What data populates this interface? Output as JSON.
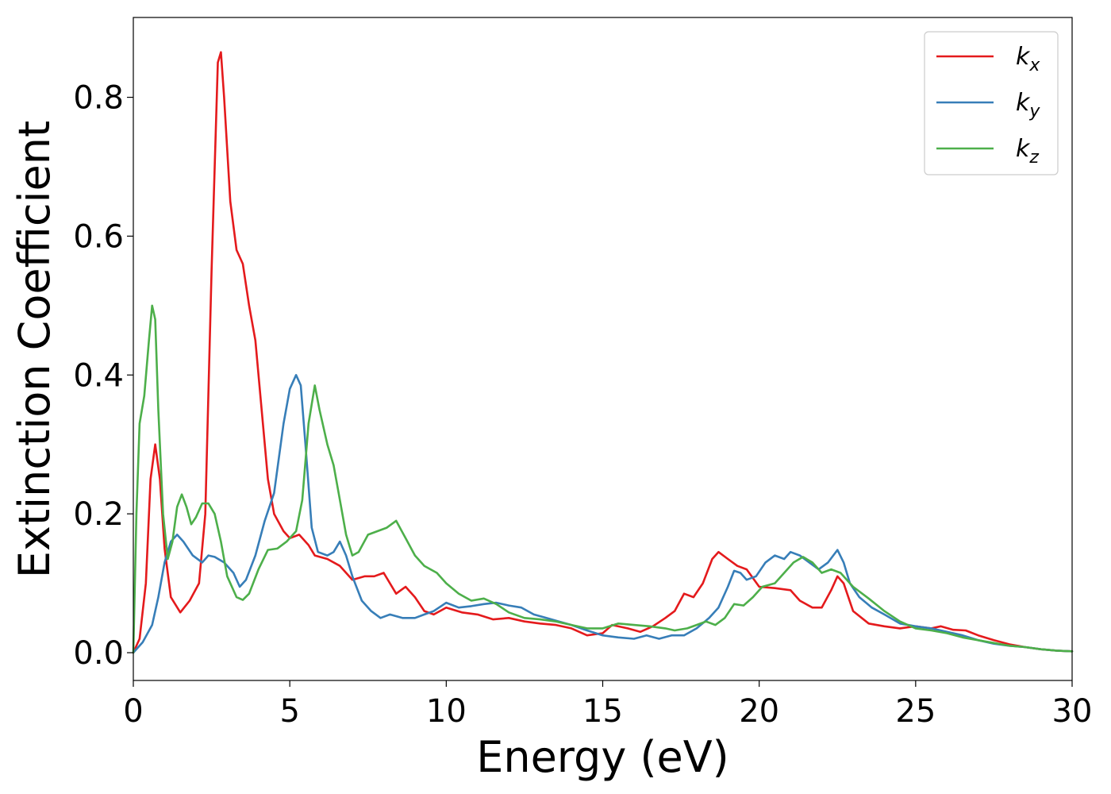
{
  "chart_data": {
    "type": "line",
    "title": "",
    "xlabel": "Energy (eV)",
    "ylabel": "Extinction Coefficient",
    "xlim": [
      0,
      30
    ],
    "ylim": [
      -0.04,
      0.915
    ],
    "x_ticks": [
      "0",
      "5",
      "10",
      "15",
      "20",
      "25",
      "30"
    ],
    "y_ticks": [
      "0.0",
      "0.2",
      "0.4",
      "0.6",
      "0.8"
    ],
    "grid": false,
    "legend_position": "top-right",
    "series": [
      {
        "name": "k_x",
        "legend_base": "k",
        "legend_sub": "x",
        "color": "#e41a1c",
        "points": [
          [
            0,
            0
          ],
          [
            0.2,
            0.02
          ],
          [
            0.4,
            0.1
          ],
          [
            0.55,
            0.25
          ],
          [
            0.7,
            0.3
          ],
          [
            0.85,
            0.25
          ],
          [
            1.0,
            0.15
          ],
          [
            1.2,
            0.08
          ],
          [
            1.5,
            0.058
          ],
          [
            1.8,
            0.075
          ],
          [
            2.1,
            0.1
          ],
          [
            2.3,
            0.2
          ],
          [
            2.5,
            0.55
          ],
          [
            2.7,
            0.85
          ],
          [
            2.8,
            0.865
          ],
          [
            2.9,
            0.8
          ],
          [
            3.1,
            0.65
          ],
          [
            3.3,
            0.58
          ],
          [
            3.5,
            0.56
          ],
          [
            3.7,
            0.5
          ],
          [
            3.9,
            0.45
          ],
          [
            4.1,
            0.35
          ],
          [
            4.3,
            0.25
          ],
          [
            4.5,
            0.2
          ],
          [
            4.8,
            0.175
          ],
          [
            5.0,
            0.165
          ],
          [
            5.3,
            0.17
          ],
          [
            5.6,
            0.155
          ],
          [
            5.8,
            0.14
          ],
          [
            6.2,
            0.135
          ],
          [
            6.6,
            0.125
          ],
          [
            7.0,
            0.105
          ],
          [
            7.4,
            0.11
          ],
          [
            7.7,
            0.11
          ],
          [
            8.0,
            0.115
          ],
          [
            8.4,
            0.085
          ],
          [
            8.7,
            0.095
          ],
          [
            9.0,
            0.08
          ],
          [
            9.3,
            0.06
          ],
          [
            9.6,
            0.055
          ],
          [
            10.0,
            0.065
          ],
          [
            10.5,
            0.058
          ],
          [
            11.0,
            0.055
          ],
          [
            11.5,
            0.048
          ],
          [
            12.0,
            0.05
          ],
          [
            12.5,
            0.045
          ],
          [
            13.0,
            0.042
          ],
          [
            13.5,
            0.04
          ],
          [
            14.0,
            0.035
          ],
          [
            14.5,
            0.025
          ],
          [
            15.0,
            0.028
          ],
          [
            15.3,
            0.04
          ],
          [
            15.8,
            0.035
          ],
          [
            16.2,
            0.03
          ],
          [
            16.6,
            0.038
          ],
          [
            17.0,
            0.05
          ],
          [
            17.3,
            0.06
          ],
          [
            17.6,
            0.085
          ],
          [
            17.9,
            0.08
          ],
          [
            18.2,
            0.1
          ],
          [
            18.5,
            0.135
          ],
          [
            18.7,
            0.145
          ],
          [
            19.0,
            0.135
          ],
          [
            19.3,
            0.125
          ],
          [
            19.6,
            0.12
          ],
          [
            20.0,
            0.095
          ],
          [
            20.5,
            0.093
          ],
          [
            21.0,
            0.09
          ],
          [
            21.3,
            0.075
          ],
          [
            21.7,
            0.065
          ],
          [
            22.0,
            0.065
          ],
          [
            22.3,
            0.09
          ],
          [
            22.5,
            0.11
          ],
          [
            22.7,
            0.1
          ],
          [
            23.0,
            0.06
          ],
          [
            23.5,
            0.042
          ],
          [
            24.0,
            0.038
          ],
          [
            24.5,
            0.035
          ],
          [
            25.0,
            0.038
          ],
          [
            25.5,
            0.035
          ],
          [
            25.8,
            0.038
          ],
          [
            26.2,
            0.033
          ],
          [
            26.6,
            0.032
          ],
          [
            27.0,
            0.025
          ],
          [
            27.5,
            0.018
          ],
          [
            28.0,
            0.012
          ],
          [
            28.5,
            0.008
          ],
          [
            29.0,
            0.005
          ],
          [
            29.5,
            0.003
          ],
          [
            30.0,
            0.002
          ]
        ]
      },
      {
        "name": "k_y",
        "legend_base": "k",
        "legend_sub": "y",
        "color": "#377eb8",
        "points": [
          [
            0,
            0
          ],
          [
            0.3,
            0.015
          ],
          [
            0.6,
            0.04
          ],
          [
            0.8,
            0.08
          ],
          [
            1.0,
            0.13
          ],
          [
            1.2,
            0.16
          ],
          [
            1.4,
            0.17
          ],
          [
            1.6,
            0.16
          ],
          [
            1.9,
            0.14
          ],
          [
            2.2,
            0.13
          ],
          [
            2.4,
            0.14
          ],
          [
            2.6,
            0.138
          ],
          [
            2.9,
            0.13
          ],
          [
            3.2,
            0.115
          ],
          [
            3.4,
            0.095
          ],
          [
            3.6,
            0.105
          ],
          [
            3.9,
            0.14
          ],
          [
            4.2,
            0.19
          ],
          [
            4.5,
            0.23
          ],
          [
            4.8,
            0.33
          ],
          [
            5.0,
            0.38
          ],
          [
            5.2,
            0.4
          ],
          [
            5.35,
            0.385
          ],
          [
            5.5,
            0.3
          ],
          [
            5.7,
            0.18
          ],
          [
            5.9,
            0.145
          ],
          [
            6.2,
            0.14
          ],
          [
            6.4,
            0.145
          ],
          [
            6.6,
            0.16
          ],
          [
            6.8,
            0.14
          ],
          [
            7.0,
            0.11
          ],
          [
            7.3,
            0.075
          ],
          [
            7.6,
            0.06
          ],
          [
            7.9,
            0.05
          ],
          [
            8.2,
            0.055
          ],
          [
            8.6,
            0.05
          ],
          [
            9.0,
            0.05
          ],
          [
            9.3,
            0.055
          ],
          [
            9.6,
            0.06
          ],
          [
            10.0,
            0.072
          ],
          [
            10.4,
            0.065
          ],
          [
            10.8,
            0.067
          ],
          [
            11.2,
            0.07
          ],
          [
            11.6,
            0.072
          ],
          [
            12.0,
            0.068
          ],
          [
            12.4,
            0.065
          ],
          [
            12.8,
            0.055
          ],
          [
            13.2,
            0.05
          ],
          [
            13.6,
            0.045
          ],
          [
            14.0,
            0.04
          ],
          [
            14.5,
            0.032
          ],
          [
            15.0,
            0.025
          ],
          [
            15.5,
            0.022
          ],
          [
            16.0,
            0.02
          ],
          [
            16.4,
            0.025
          ],
          [
            16.8,
            0.02
          ],
          [
            17.2,
            0.025
          ],
          [
            17.6,
            0.025
          ],
          [
            18.0,
            0.035
          ],
          [
            18.4,
            0.05
          ],
          [
            18.7,
            0.065
          ],
          [
            19.0,
            0.095
          ],
          [
            19.2,
            0.118
          ],
          [
            19.4,
            0.115
          ],
          [
            19.6,
            0.105
          ],
          [
            19.9,
            0.11
          ],
          [
            20.2,
            0.13
          ],
          [
            20.5,
            0.14
          ],
          [
            20.8,
            0.135
          ],
          [
            21.0,
            0.145
          ],
          [
            21.3,
            0.14
          ],
          [
            21.6,
            0.13
          ],
          [
            21.9,
            0.12
          ],
          [
            22.2,
            0.13
          ],
          [
            22.5,
            0.148
          ],
          [
            22.7,
            0.13
          ],
          [
            22.9,
            0.1
          ],
          [
            23.2,
            0.08
          ],
          [
            23.6,
            0.065
          ],
          [
            24.0,
            0.055
          ],
          [
            24.5,
            0.042
          ],
          [
            25.0,
            0.038
          ],
          [
            25.5,
            0.035
          ],
          [
            26.0,
            0.03
          ],
          [
            26.5,
            0.025
          ],
          [
            27.0,
            0.018
          ],
          [
            27.5,
            0.013
          ],
          [
            28.0,
            0.01
          ],
          [
            28.5,
            0.008
          ],
          [
            29.0,
            0.005
          ],
          [
            29.5,
            0.003
          ],
          [
            30.0,
            0.002
          ]
        ]
      },
      {
        "name": "k_z",
        "legend_base": "k",
        "legend_sub": "z",
        "color": "#4daf4a",
        "points": [
          [
            0,
            0
          ],
          [
            0.1,
            0.2
          ],
          [
            0.2,
            0.33
          ],
          [
            0.35,
            0.37
          ],
          [
            0.5,
            0.45
          ],
          [
            0.6,
            0.5
          ],
          [
            0.7,
            0.48
          ],
          [
            0.8,
            0.35
          ],
          [
            0.95,
            0.2
          ],
          [
            1.1,
            0.135
          ],
          [
            1.25,
            0.16
          ],
          [
            1.4,
            0.21
          ],
          [
            1.55,
            0.228
          ],
          [
            1.7,
            0.21
          ],
          [
            1.85,
            0.185
          ],
          [
            2.0,
            0.195
          ],
          [
            2.2,
            0.215
          ],
          [
            2.4,
            0.215
          ],
          [
            2.6,
            0.2
          ],
          [
            2.8,
            0.16
          ],
          [
            3.0,
            0.11
          ],
          [
            3.3,
            0.08
          ],
          [
            3.5,
            0.076
          ],
          [
            3.7,
            0.085
          ],
          [
            4.0,
            0.12
          ],
          [
            4.3,
            0.148
          ],
          [
            4.6,
            0.15
          ],
          [
            4.9,
            0.16
          ],
          [
            5.2,
            0.175
          ],
          [
            5.4,
            0.22
          ],
          [
            5.6,
            0.33
          ],
          [
            5.8,
            0.385
          ],
          [
            5.95,
            0.35
          ],
          [
            6.2,
            0.3
          ],
          [
            6.4,
            0.27
          ],
          [
            6.6,
            0.22
          ],
          [
            6.8,
            0.17
          ],
          [
            7.0,
            0.14
          ],
          [
            7.2,
            0.145
          ],
          [
            7.5,
            0.17
          ],
          [
            7.8,
            0.175
          ],
          [
            8.1,
            0.18
          ],
          [
            8.4,
            0.19
          ],
          [
            8.7,
            0.165
          ],
          [
            9.0,
            0.14
          ],
          [
            9.3,
            0.125
          ],
          [
            9.7,
            0.115
          ],
          [
            10.0,
            0.1
          ],
          [
            10.4,
            0.085
          ],
          [
            10.8,
            0.075
          ],
          [
            11.2,
            0.078
          ],
          [
            11.6,
            0.07
          ],
          [
            12.0,
            0.058
          ],
          [
            12.5,
            0.05
          ],
          [
            13.0,
            0.048
          ],
          [
            13.5,
            0.045
          ],
          [
            14.0,
            0.04
          ],
          [
            14.5,
            0.035
          ],
          [
            15.0,
            0.035
          ],
          [
            15.5,
            0.042
          ],
          [
            16.0,
            0.04
          ],
          [
            16.5,
            0.038
          ],
          [
            17.0,
            0.035
          ],
          [
            17.3,
            0.032
          ],
          [
            17.7,
            0.035
          ],
          [
            18.0,
            0.04
          ],
          [
            18.3,
            0.045
          ],
          [
            18.6,
            0.04
          ],
          [
            18.9,
            0.05
          ],
          [
            19.2,
            0.07
          ],
          [
            19.5,
            0.068
          ],
          [
            19.8,
            0.08
          ],
          [
            20.1,
            0.095
          ],
          [
            20.5,
            0.1
          ],
          [
            20.8,
            0.115
          ],
          [
            21.1,
            0.13
          ],
          [
            21.4,
            0.138
          ],
          [
            21.7,
            0.13
          ],
          [
            22.0,
            0.115
          ],
          [
            22.3,
            0.12
          ],
          [
            22.6,
            0.115
          ],
          [
            23.0,
            0.095
          ],
          [
            23.5,
            0.078
          ],
          [
            24.0,
            0.06
          ],
          [
            24.5,
            0.045
          ],
          [
            25.0,
            0.035
          ],
          [
            25.5,
            0.032
          ],
          [
            26.0,
            0.028
          ],
          [
            26.5,
            0.022
          ],
          [
            27.0,
            0.018
          ],
          [
            27.5,
            0.014
          ],
          [
            28.0,
            0.01
          ],
          [
            28.5,
            0.008
          ],
          [
            29.0,
            0.005
          ],
          [
            29.5,
            0.003
          ],
          [
            30.0,
            0.002
          ]
        ]
      }
    ]
  }
}
